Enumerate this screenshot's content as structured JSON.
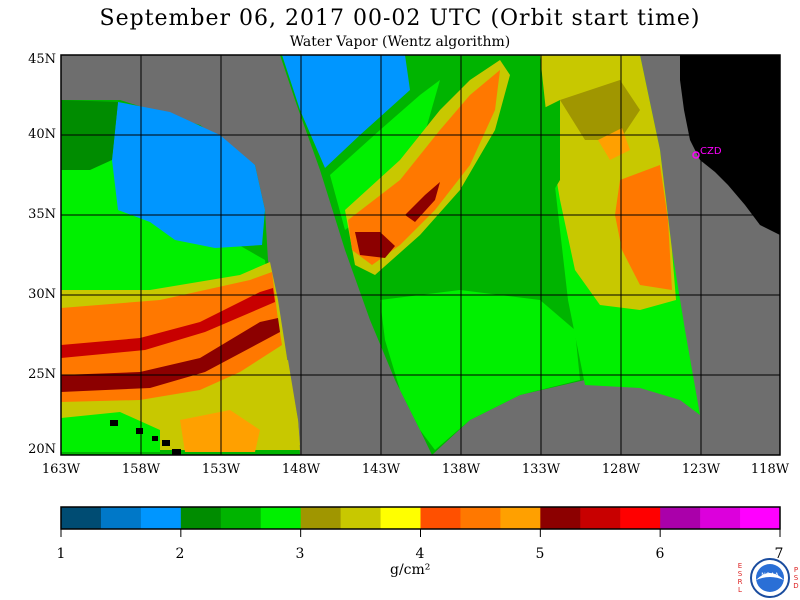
{
  "header": {
    "title": "September 06, 2017  00-02 UTC  (Orbit start time)",
    "subtitle": "Water Vapor (Wentz algorithm)"
  },
  "map": {
    "lat_labels": [
      "45N",
      "40N",
      "35N",
      "30N",
      "25N",
      "20N"
    ],
    "lon_labels": [
      "163W",
      "158W",
      "153W",
      "148W",
      "143W",
      "138W",
      "133W",
      "128W",
      "123W",
      "118W"
    ],
    "station_label": "CZD",
    "colors": {
      "no_data_gray": "#6e6e6e",
      "land_black": "#000000",
      "station_magenta": "#ff00ff"
    }
  },
  "colorbar": {
    "tick_labels": [
      "1",
      "2",
      "3",
      "4",
      "5",
      "6",
      "7"
    ],
    "unit": "g/cm²",
    "colors": [
      "#004c73",
      "#0078c8",
      "#0096ff",
      "#008c00",
      "#00b400",
      "#00f000",
      "#a09600",
      "#c8c800",
      "#ffff00",
      "#ff5000",
      "#ff7800",
      "#ffa000",
      "#8c0000",
      "#c80000",
      "#ff0000",
      "#aa00aa",
      "#dc00dc",
      "#ff00ff"
    ]
  },
  "logo": {
    "left_letters": [
      "E",
      "S",
      "R",
      "L"
    ],
    "right_letters": [
      "P",
      "S",
      "D"
    ],
    "emblem_text": "NOAA"
  }
}
